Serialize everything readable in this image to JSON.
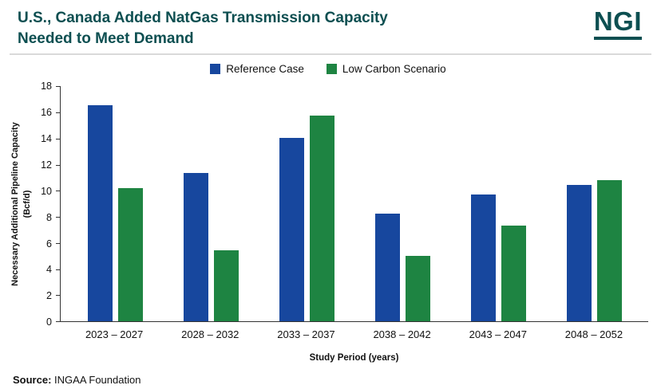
{
  "header": {
    "title_line1": "U.S., Canada Added NatGas Transmission Capacity",
    "title_line2": "Needed to Meet Demand",
    "logo": "NGI"
  },
  "colors": {
    "brand_teal": "#0d4f51",
    "reference_case": "#17479e",
    "low_carbon": "#1e8442"
  },
  "chart_data": {
    "type": "bar",
    "title": "U.S., Canada Added NatGas Transmission Capacity Needed to Meet Demand",
    "categories": [
      "2023 – 2027",
      "2028 – 2032",
      "2033 – 2037",
      "2038 – 2042",
      "2043 – 2047",
      "2048 – 2052"
    ],
    "series": [
      {
        "name": "Reference Case",
        "color": "#17479e",
        "values": [
          16.5,
          11.3,
          14.0,
          8.2,
          9.7,
          10.4
        ]
      },
      {
        "name": "Low Carbon Scenario",
        "color": "#1e8442",
        "values": [
          10.2,
          5.4,
          15.7,
          5.0,
          7.3,
          10.8
        ]
      }
    ],
    "xlabel": "Study Period (years)",
    "ylabel_line1": "Necessary Additional Pipeline Capacity",
    "ylabel_line2": "(Bcf/d)",
    "ylim": [
      0,
      18
    ],
    "y_ticks": [
      0,
      2,
      4,
      6,
      8,
      10,
      12,
      14,
      16,
      18
    ],
    "grid": false,
    "legend_position": "top"
  },
  "source": {
    "label": "Source:",
    "text": "INGAA Foundation"
  }
}
